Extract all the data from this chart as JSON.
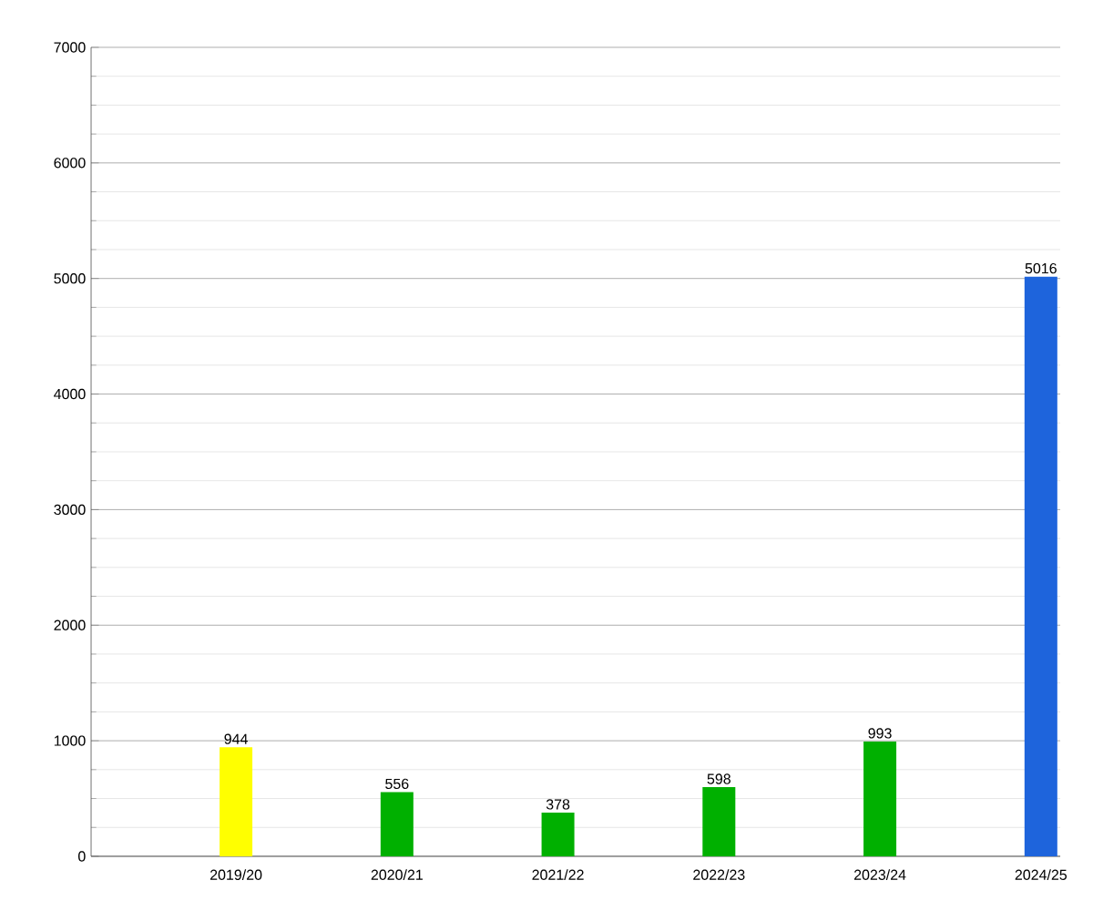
{
  "chart_data": {
    "type": "bar",
    "categories": [
      "2019/20",
      "2020/21",
      "2021/22",
      "2022/23",
      "2023/24",
      "2024/25"
    ],
    "values": [
      944,
      556,
      378,
      598,
      993,
      5016
    ],
    "colors": [
      "#ffff00",
      "#00b000",
      "#00b000",
      "#00b000",
      "#00b000",
      "#1e64dc"
    ],
    "ylim": [
      0,
      7000
    ],
    "yticks": [
      0,
      1000,
      2000,
      3000,
      4000,
      5000,
      6000,
      7000
    ],
    "grid": "y",
    "data_labels": true
  }
}
